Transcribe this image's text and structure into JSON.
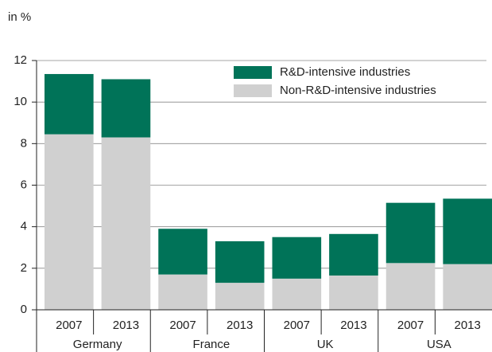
{
  "chart_data": {
    "type": "stacked_bar",
    "y_label": "in %",
    "categories": [
      "2007",
      "2013",
      "2007",
      "2013",
      "2007",
      "2013",
      "2007",
      "2013"
    ],
    "groups": [
      "Germany",
      "France",
      "UK",
      "USA"
    ],
    "series": [
      {
        "name": "Non-R&D-intensive industries",
        "color": "#d0d0d0",
        "values": [
          8.45,
          8.3,
          1.7,
          1.3,
          1.5,
          1.65,
          2.25,
          2.2
        ]
      },
      {
        "name": "R&D-intensive industries",
        "color": "#007358",
        "values": [
          2.9,
          2.8,
          2.2,
          2.0,
          2.0,
          2.0,
          2.9,
          3.15
        ]
      }
    ],
    "ylim": [
      0,
      12
    ],
    "yticks": [
      0,
      2,
      4,
      6,
      8,
      10,
      12
    ],
    "grid": true,
    "legend": "top-right"
  }
}
